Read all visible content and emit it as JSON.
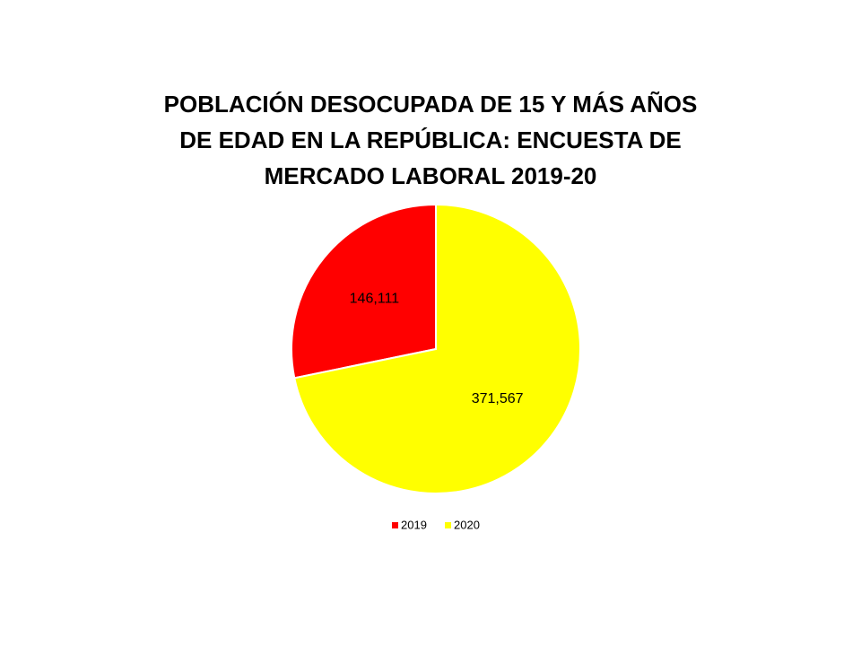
{
  "chart_data": {
    "type": "pie",
    "title": "POBLACIÓN DESOCUPADA DE 15 Y MÁS AÑOS DE EDAD EN LA REPÚBLICA: ENCUESTA DE MERCADO LABORAL 2019-20",
    "categories": [
      "2019",
      "2020"
    ],
    "values": [
      146111,
      371567
    ],
    "value_labels": [
      "146,111",
      "371,567"
    ],
    "colors": [
      "#ff0000",
      "#ffff00"
    ]
  }
}
